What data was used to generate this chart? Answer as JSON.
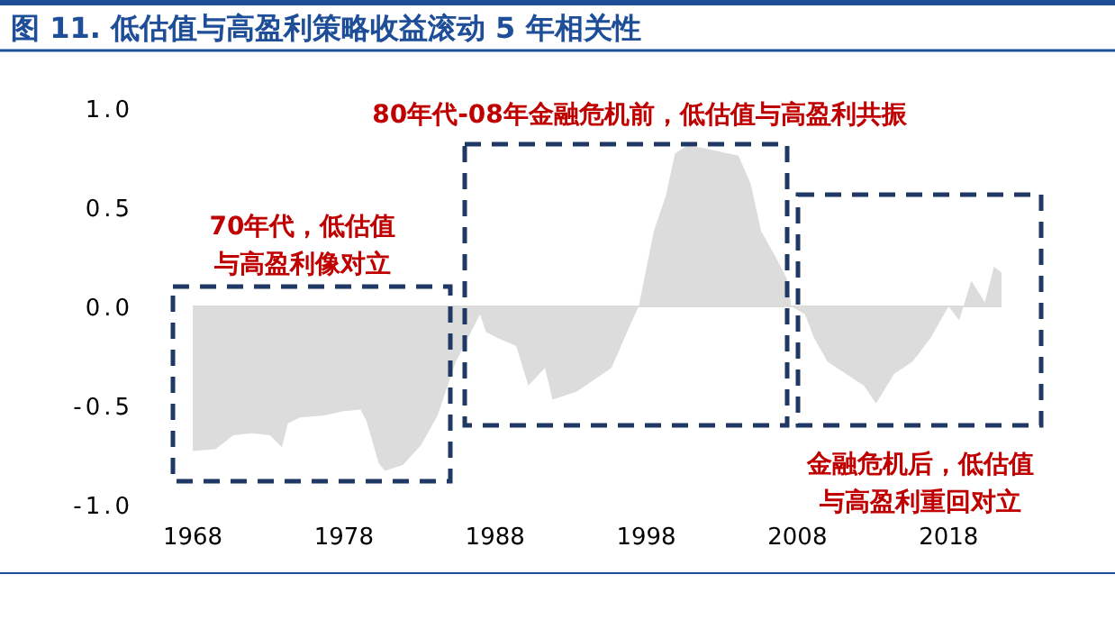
{
  "chart_data": {
    "type": "area",
    "title": "图 11. 低估值与高盈利策略收益滚动 5 年相关性",
    "x": [
      1968.0,
      1969.5,
      1970.7,
      1971.9,
      1973.1,
      1973.9,
      1974.3,
      1975.1,
      1976.7,
      1977.9,
      1979.1,
      1979.5,
      1980.3,
      1980.7,
      1981.9,
      1983.1,
      1984.2,
      1985.4,
      1986.2,
      1987.0,
      1987.4,
      1988.2,
      1989.4,
      1990.2,
      1991.3,
      1991.8,
      1993.4,
      1995.7,
      1996.9,
      1997.5,
      1998.5,
      1999.3,
      1999.9,
      2000.7,
      2001.7,
      2004.1,
      2004.9,
      2005.6,
      2006.7,
      2007.3,
      2007.6,
      2008.5,
      2009.1,
      2010.0,
      2011.2,
      2012.4,
      2013.2,
      2014.4,
      2015.6,
      2016.8,
      2018.0,
      2018.7,
      2019.5,
      2020.4,
      2021.0,
      2021.5
    ],
    "series": [
      {
        "color": "#dcdcdc",
        "values": [
          -0.73,
          -0.72,
          -0.65,
          -0.64,
          -0.65,
          -0.71,
          -0.59,
          -0.56,
          -0.55,
          -0.53,
          -0.52,
          -0.58,
          -0.79,
          -0.83,
          -0.8,
          -0.7,
          -0.55,
          -0.28,
          -0.16,
          -0.04,
          -0.13,
          -0.16,
          -0.2,
          -0.4,
          -0.31,
          -0.47,
          -0.43,
          -0.31,
          -0.1,
          0.0,
          0.38,
          0.56,
          0.77,
          0.81,
          0.8,
          0.76,
          0.62,
          0.38,
          0.23,
          0.14,
          0.0,
          -0.04,
          -0.16,
          -0.28,
          -0.34,
          -0.4,
          -0.49,
          -0.34,
          -0.28,
          -0.16,
          0.0,
          -0.07,
          0.13,
          0.02,
          0.2,
          0.17
        ]
      }
    ],
    "xlim": [
      1968,
      2021.5
    ],
    "xticks": [
      1968,
      1978,
      1988,
      1998,
      2008,
      2018
    ],
    "ylim": [
      -1,
      1
    ],
    "yticks": [
      {
        "value": 1,
        "label": "1.0"
      },
      {
        "value": 0.5,
        "label": "0.5"
      },
      {
        "value": 0,
        "label": "0.0"
      },
      {
        "value": -0.5,
        "label": "-0.5"
      },
      {
        "value": -1,
        "label": "-1.0"
      }
    ],
    "annotations": [
      "70年代，低估值与高盈利像对立",
      "80年代-08年金融危机前，低估值与高盈利共振",
      "金融危机后，低估值与高盈利重回对立"
    ]
  }
}
